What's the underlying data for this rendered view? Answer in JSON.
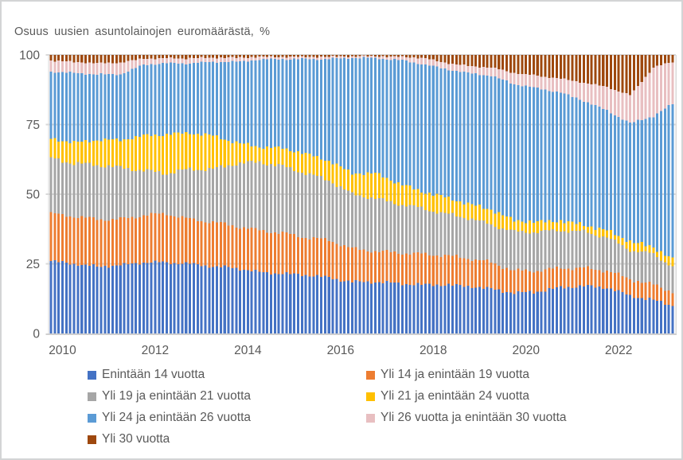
{
  "title": "Osuus uusien asuntolainojen euromäärästä, %",
  "text_color": "#595959",
  "frame_color": "#d3d4d5",
  "chart_data": {
    "type": "bar",
    "stacked": true,
    "percent_stacked": true,
    "title": "Osuus uusien asuntolainojen euromäärästä, %",
    "x_axis": {
      "start_year": 2010,
      "start_month": 1,
      "months": 162,
      "end_label": "2023-06",
      "tick_years": [
        2010,
        2012,
        2014,
        2016,
        2018,
        2020,
        2022
      ],
      "tick_labels": [
        "2010",
        "2012",
        "2014",
        "2016",
        "2018",
        "2020",
        "2022"
      ]
    },
    "y_axis": {
      "min": 0,
      "max": 100,
      "ticks": [
        0,
        25,
        50,
        75,
        100
      ],
      "tick_labels": [
        "0",
        "25",
        "50",
        "75",
        "100"
      ]
    },
    "grid": {
      "color": "#d9d9d9",
      "axis_line_color": "#cfcfcf",
      "h_lines": [
        25,
        50,
        75,
        100
      ],
      "v_line_years": [
        2012,
        2014,
        2016,
        2018,
        2020,
        2022
      ]
    },
    "anchor_years": [
      2010,
      2010.5,
      2011,
      2011.5,
      2012,
      2012.5,
      2013,
      2013.5,
      2014,
      2014.5,
      2015,
      2015.5,
      2016,
      2016.5,
      2017,
      2017.5,
      2018,
      2018.5,
      2019,
      2019.5,
      2020,
      2020.5,
      2021,
      2021.5,
      2022,
      2022.5,
      2023,
      2023.42
    ],
    "series": [
      {
        "name": "Enintään 14 vuotta",
        "color": "#4472c4",
        "anchor_values": [
          26,
          25,
          24,
          24.5,
          25.5,
          25.5,
          25,
          24,
          23.5,
          22,
          21.5,
          21,
          20,
          18.5,
          18.5,
          18,
          17.5,
          17.5,
          17,
          16,
          14.5,
          15,
          16.5,
          17,
          16.5,
          13.5,
          12,
          10
        ]
      },
      {
        "name": "Yli 14 ja enintään 19 vuotta",
        "color": "#ed7d31",
        "anchor_values": [
          17,
          17,
          17,
          16.5,
          17,
          17.5,
          16,
          16,
          15,
          15,
          14.5,
          13.5,
          13.5,
          12,
          11,
          11,
          11,
          10.5,
          10,
          9.5,
          8,
          7.5,
          7,
          6.5,
          6,
          6,
          5.5,
          5
        ]
      },
      {
        "name": "Yli 19 ja enintään 21 vuotta",
        "color": "#a6a6a6",
        "anchor_values": [
          20,
          19,
          19.5,
          18.5,
          16,
          14.5,
          18,
          19,
          22.5,
          24.5,
          24,
          23,
          21.5,
          19.5,
          19,
          17.5,
          16.5,
          15,
          14.5,
          13.5,
          14,
          14,
          13.5,
          13,
          12,
          10.5,
          11,
          9
        ]
      },
      {
        "name": "Yli 21 ja enintään 24 vuotta",
        "color": "#ffc000",
        "anchor_values": [
          7,
          7.5,
          9,
          10,
          12.5,
          14,
          13,
          12,
          7.5,
          5.5,
          6.5,
          7,
          7,
          7.5,
          9,
          7.5,
          6,
          6,
          5,
          5.5,
          4,
          3.5,
          3.5,
          2.5,
          2.5,
          3,
          2.5,
          2.5
        ]
      },
      {
        "name": "Yli 24 ja enintään 26 vuotta",
        "color": "#5b9bd5",
        "anchor_values": [
          24,
          25,
          23.5,
          23.5,
          25.5,
          25.5,
          25,
          26.5,
          29,
          31.3,
          32,
          34,
          36.5,
          41.5,
          41.3,
          44.2,
          45.8,
          46,
          47,
          48,
          49,
          48,
          46,
          44.5,
          43,
          42.5,
          47,
          56
        ]
      },
      {
        "name": "Yli 26 vuotta ja enintään 30 vuotta",
        "color": "#e8bfc1",
        "anchor_values": [
          4,
          4,
          4,
          4.2,
          2.2,
          1.8,
          1.8,
          1.5,
          1.5,
          1,
          0.8,
          0.8,
          0.8,
          0.5,
          0.7,
          1.2,
          2.2,
          2.2,
          2.5,
          3,
          4,
          4.5,
          5,
          6.5,
          8.5,
          10,
          17.5,
          15
        ]
      },
      {
        "name": "Yli 30 vuotta",
        "color": "#9e480e",
        "anchor_values": [
          2,
          2.5,
          3,
          2.8,
          1.3,
          1.2,
          1.2,
          1,
          1,
          0.7,
          0.7,
          0.7,
          0.7,
          0.5,
          0.5,
          0.6,
          1,
          2.8,
          4,
          4.5,
          6.5,
          7.5,
          8.5,
          10,
          11.5,
          14.5,
          4.5,
          2.5
        ]
      }
    ],
    "monthly_noise": {
      "amps": [
        0.6,
        0.5,
        0.7,
        0.9,
        0.7,
        0.2,
        0.25
      ]
    },
    "legend": {
      "position": "bottom",
      "columns": 2
    }
  }
}
